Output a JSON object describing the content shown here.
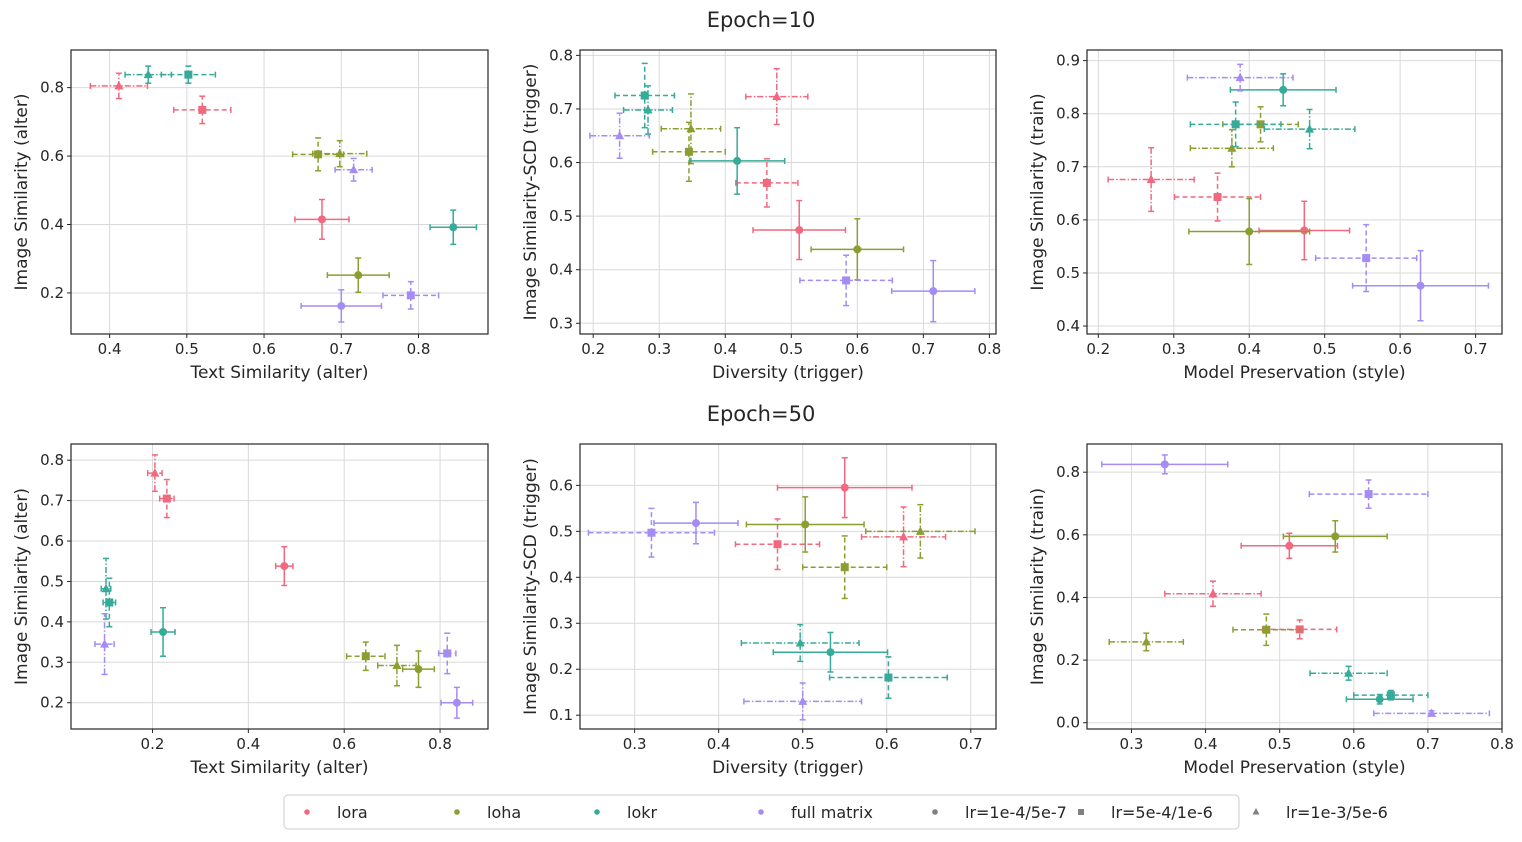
{
  "row_titles": [
    "Epoch=10",
    "Epoch=50"
  ],
  "colors": {
    "lora": "#f0697f",
    "loha": "#8c9e31",
    "lokr": "#36ab99",
    "full matrix": "#a48cf4",
    "marker_gray": "#808080"
  },
  "legend": {
    "entries": [
      {
        "label": "lora",
        "marker": "circle",
        "color": "#f0697f"
      },
      {
        "label": "loha",
        "marker": "circle",
        "color": "#8c9e31"
      },
      {
        "label": "lokr",
        "marker": "circle",
        "color": "#36ab99"
      },
      {
        "label": "full matrix",
        "marker": "circle",
        "color": "#a48cf4"
      },
      {
        "label": "lr=1e-4/5e-7",
        "marker": "circle",
        "color": "#808080"
      },
      {
        "label": "lr=5e-4/1e-6",
        "marker": "square",
        "color": "#808080"
      },
      {
        "label": "lr=1e-3/5e-6",
        "marker": "triangle",
        "color": "#808080"
      }
    ]
  },
  "chart_data": [
    {
      "type": "scatter",
      "row": 0,
      "col": 0,
      "xlabel": "Text Similarity (alter)",
      "ylabel": "Image Similarity (alter)",
      "xlim": [
        0.35,
        0.89
      ],
      "ylim": [
        0.08,
        0.91
      ],
      "xticks": [
        0.4,
        0.5,
        0.6,
        0.7,
        0.8
      ],
      "yticks": [
        0.2,
        0.4,
        0.6,
        0.8
      ],
      "grid": true,
      "points": [
        {
          "m": "lora",
          "lr": "circle",
          "x": 0.675,
          "y": 0.415,
          "xe": 0.035,
          "ye": 0.058
        },
        {
          "m": "lora",
          "lr": "square",
          "x": 0.52,
          "y": 0.735,
          "xe": 0.037,
          "ye": 0.04
        },
        {
          "m": "lora",
          "lr": "triangle",
          "x": 0.412,
          "y": 0.805,
          "xe": 0.037,
          "ye": 0.037
        },
        {
          "m": "loha",
          "lr": "circle",
          "x": 0.722,
          "y": 0.252,
          "xe": 0.04,
          "ye": 0.05
        },
        {
          "m": "loha",
          "lr": "square",
          "x": 0.67,
          "y": 0.605,
          "xe": 0.033,
          "ye": 0.048
        },
        {
          "m": "loha",
          "lr": "triangle",
          "x": 0.698,
          "y": 0.607,
          "xe": 0.035,
          "ye": 0.038
        },
        {
          "m": "lokr",
          "lr": "circle",
          "x": 0.845,
          "y": 0.392,
          "xe": 0.03,
          "ye": 0.05
        },
        {
          "m": "lokr",
          "lr": "square",
          "x": 0.502,
          "y": 0.838,
          "xe": 0.035,
          "ye": 0.025
        },
        {
          "m": "lokr",
          "lr": "triangle",
          "x": 0.45,
          "y": 0.838,
          "xe": 0.03,
          "ye": 0.025
        },
        {
          "m": "full matrix",
          "lr": "circle",
          "x": 0.7,
          "y": 0.162,
          "xe": 0.052,
          "ye": 0.047
        },
        {
          "m": "full matrix",
          "lr": "square",
          "x": 0.79,
          "y": 0.193,
          "xe": 0.036,
          "ye": 0.04
        },
        {
          "m": "full matrix",
          "lr": "triangle",
          "x": 0.716,
          "y": 0.56,
          "xe": 0.024,
          "ye": 0.033
        }
      ]
    },
    {
      "type": "scatter",
      "row": 0,
      "col": 1,
      "xlabel": "Diversity (trigger)",
      "ylabel": "Image Similarity-SCD (trigger)",
      "xlim": [
        0.18,
        0.81
      ],
      "ylim": [
        0.28,
        0.81
      ],
      "xticks": [
        0.2,
        0.3,
        0.4,
        0.5,
        0.6,
        0.7,
        0.8
      ],
      "yticks": [
        0.3,
        0.4,
        0.5,
        0.6,
        0.7,
        0.8
      ],
      "grid": true,
      "points": [
        {
          "m": "lora",
          "lr": "circle",
          "x": 0.512,
          "y": 0.474,
          "xe": 0.07,
          "ye": 0.055
        },
        {
          "m": "lora",
          "lr": "square",
          "x": 0.463,
          "y": 0.562,
          "xe": 0.047,
          "ye": 0.045
        },
        {
          "m": "lora",
          "lr": "triangle",
          "x": 0.478,
          "y": 0.723,
          "xe": 0.047,
          "ye": 0.052
        },
        {
          "m": "loha",
          "lr": "circle",
          "x": 0.6,
          "y": 0.438,
          "xe": 0.07,
          "ye": 0.057
        },
        {
          "m": "loha",
          "lr": "square",
          "x": 0.345,
          "y": 0.62,
          "xe": 0.055,
          "ye": 0.055
        },
        {
          "m": "loha",
          "lr": "triangle",
          "x": 0.348,
          "y": 0.663,
          "xe": 0.045,
          "ye": 0.065
        },
        {
          "m": "lokr",
          "lr": "circle",
          "x": 0.418,
          "y": 0.603,
          "xe": 0.072,
          "ye": 0.062
        },
        {
          "m": "lokr",
          "lr": "square",
          "x": 0.278,
          "y": 0.725,
          "xe": 0.045,
          "ye": 0.06
        },
        {
          "m": "lokr",
          "lr": "triangle",
          "x": 0.283,
          "y": 0.698,
          "xe": 0.037,
          "ye": 0.045
        },
        {
          "m": "full matrix",
          "lr": "circle",
          "x": 0.715,
          "y": 0.36,
          "xe": 0.063,
          "ye": 0.057
        },
        {
          "m": "full matrix",
          "lr": "square",
          "x": 0.583,
          "y": 0.38,
          "xe": 0.07,
          "ye": 0.047
        },
        {
          "m": "full matrix",
          "lr": "triangle",
          "x": 0.24,
          "y": 0.65,
          "xe": 0.045,
          "ye": 0.042
        }
      ]
    },
    {
      "type": "scatter",
      "row": 0,
      "col": 2,
      "xlabel": "Model Preservation (style)",
      "ylabel": "Image Similarity (train)",
      "xlim": [
        0.185,
        0.735
      ],
      "ylim": [
        0.385,
        0.92
      ],
      "xticks": [
        0.2,
        0.3,
        0.4,
        0.5,
        0.6,
        0.7
      ],
      "yticks": [
        0.4,
        0.5,
        0.6,
        0.7,
        0.8,
        0.9
      ],
      "grid": true,
      "points": [
        {
          "m": "lora",
          "lr": "circle",
          "x": 0.473,
          "y": 0.58,
          "xe": 0.06,
          "ye": 0.055
        },
        {
          "m": "lora",
          "lr": "square",
          "x": 0.358,
          "y": 0.643,
          "xe": 0.057,
          "ye": 0.045
        },
        {
          "m": "lora",
          "lr": "triangle",
          "x": 0.27,
          "y": 0.676,
          "xe": 0.057,
          "ye": 0.06
        },
        {
          "m": "loha",
          "lr": "circle",
          "x": 0.4,
          "y": 0.578,
          "xe": 0.08,
          "ye": 0.062
        },
        {
          "m": "loha",
          "lr": "square",
          "x": 0.415,
          "y": 0.78,
          "xe": 0.05,
          "ye": 0.033
        },
        {
          "m": "loha",
          "lr": "triangle",
          "x": 0.377,
          "y": 0.735,
          "xe": 0.055,
          "ye": 0.035
        },
        {
          "m": "lokr",
          "lr": "circle",
          "x": 0.445,
          "y": 0.845,
          "xe": 0.07,
          "ye": 0.03
        },
        {
          "m": "lokr",
          "lr": "square",
          "x": 0.382,
          "y": 0.78,
          "xe": 0.06,
          "ye": 0.042
        },
        {
          "m": "lokr",
          "lr": "triangle",
          "x": 0.48,
          "y": 0.771,
          "xe": 0.06,
          "ye": 0.037
        },
        {
          "m": "full matrix",
          "lr": "circle",
          "x": 0.627,
          "y": 0.476,
          "xe": 0.09,
          "ye": 0.066
        },
        {
          "m": "full matrix",
          "lr": "square",
          "x": 0.555,
          "y": 0.528,
          "xe": 0.067,
          "ye": 0.063
        },
        {
          "m": "full matrix",
          "lr": "triangle",
          "x": 0.388,
          "y": 0.868,
          "xe": 0.07,
          "ye": 0.025
        }
      ]
    },
    {
      "type": "scatter",
      "row": 1,
      "col": 0,
      "xlabel": "Text Similarity (alter)",
      "ylabel": "Image Similarity (alter)",
      "xlim": [
        0.03,
        0.9
      ],
      "ylim": [
        0.135,
        0.84
      ],
      "xticks": [
        0.2,
        0.4,
        0.6,
        0.8
      ],
      "yticks": [
        0.2,
        0.3,
        0.4,
        0.5,
        0.6,
        0.7,
        0.8
      ],
      "grid": true,
      "points": [
        {
          "m": "lora",
          "lr": "circle",
          "x": 0.475,
          "y": 0.538,
          "xe": 0.018,
          "ye": 0.048
        },
        {
          "m": "lora",
          "lr": "square",
          "x": 0.23,
          "y": 0.705,
          "xe": 0.015,
          "ye": 0.047
        },
        {
          "m": "lora",
          "lr": "triangle",
          "x": 0.205,
          "y": 0.768,
          "xe": 0.015,
          "ye": 0.045
        },
        {
          "m": "loha",
          "lr": "circle",
          "x": 0.755,
          "y": 0.283,
          "xe": 0.033,
          "ye": 0.045
        },
        {
          "m": "loha",
          "lr": "square",
          "x": 0.645,
          "y": 0.315,
          "xe": 0.04,
          "ye": 0.035
        },
        {
          "m": "loha",
          "lr": "triangle",
          "x": 0.71,
          "y": 0.292,
          "xe": 0.04,
          "ye": 0.05
        },
        {
          "m": "lokr",
          "lr": "circle",
          "x": 0.222,
          "y": 0.375,
          "xe": 0.025,
          "ye": 0.06
        },
        {
          "m": "lokr",
          "lr": "square",
          "x": 0.11,
          "y": 0.448,
          "xe": 0.013,
          "ye": 0.06
        },
        {
          "m": "lokr",
          "lr": "triangle",
          "x": 0.103,
          "y": 0.482,
          "xe": 0.01,
          "ye": 0.075
        },
        {
          "m": "full matrix",
          "lr": "circle",
          "x": 0.835,
          "y": 0.2,
          "xe": 0.033,
          "ye": 0.038
        },
        {
          "m": "full matrix",
          "lr": "square",
          "x": 0.815,
          "y": 0.322,
          "xe": 0.018,
          "ye": 0.05
        },
        {
          "m": "full matrix",
          "lr": "triangle",
          "x": 0.1,
          "y": 0.345,
          "xe": 0.02,
          "ye": 0.075
        }
      ]
    },
    {
      "type": "scatter",
      "row": 1,
      "col": 1,
      "xlabel": "Diversity (trigger)",
      "ylabel": "Image Similarity-SCD (trigger)",
      "xlim": [
        0.235,
        0.73
      ],
      "ylim": [
        0.07,
        0.69
      ],
      "xticks": [
        0.3,
        0.4,
        0.5,
        0.6,
        0.7
      ],
      "yticks": [
        0.1,
        0.2,
        0.3,
        0.4,
        0.5,
        0.6
      ],
      "grid": true,
      "points": [
        {
          "m": "lora",
          "lr": "circle",
          "x": 0.55,
          "y": 0.595,
          "xe": 0.08,
          "ye": 0.065
        },
        {
          "m": "lora",
          "lr": "square",
          "x": 0.47,
          "y": 0.472,
          "xe": 0.05,
          "ye": 0.055
        },
        {
          "m": "lora",
          "lr": "triangle",
          "x": 0.62,
          "y": 0.488,
          "xe": 0.05,
          "ye": 0.065
        },
        {
          "m": "loha",
          "lr": "circle",
          "x": 0.503,
          "y": 0.515,
          "xe": 0.07,
          "ye": 0.06
        },
        {
          "m": "loha",
          "lr": "square",
          "x": 0.55,
          "y": 0.422,
          "xe": 0.05,
          "ye": 0.068
        },
        {
          "m": "loha",
          "lr": "triangle",
          "x": 0.64,
          "y": 0.5,
          "xe": 0.065,
          "ye": 0.058
        },
        {
          "m": "lokr",
          "lr": "circle",
          "x": 0.533,
          "y": 0.237,
          "xe": 0.068,
          "ye": 0.043
        },
        {
          "m": "lokr",
          "lr": "square",
          "x": 0.602,
          "y": 0.182,
          "xe": 0.07,
          "ye": 0.045
        },
        {
          "m": "lokr",
          "lr": "triangle",
          "x": 0.497,
          "y": 0.257,
          "xe": 0.07,
          "ye": 0.04
        },
        {
          "m": "full matrix",
          "lr": "circle",
          "x": 0.373,
          "y": 0.518,
          "xe": 0.05,
          "ye": 0.045
        },
        {
          "m": "full matrix",
          "lr": "square",
          "x": 0.32,
          "y": 0.497,
          "xe": 0.075,
          "ye": 0.053
        },
        {
          "m": "full matrix",
          "lr": "triangle",
          "x": 0.5,
          "y": 0.13,
          "xe": 0.07,
          "ye": 0.04
        }
      ]
    },
    {
      "type": "scatter",
      "row": 1,
      "col": 2,
      "xlabel": "Model Preservation (style)",
      "ylabel": "Image Similarity (train)",
      "xlim": [
        0.24,
        0.8
      ],
      "ylim": [
        -0.02,
        0.89
      ],
      "xticks": [
        0.3,
        0.4,
        0.5,
        0.6,
        0.7,
        0.8
      ],
      "yticks": [
        0.0,
        0.2,
        0.4,
        0.6,
        0.8
      ],
      "grid": true,
      "points": [
        {
          "m": "lora",
          "lr": "circle",
          "x": 0.513,
          "y": 0.565,
          "xe": 0.065,
          "ye": 0.04
        },
        {
          "m": "lora",
          "lr": "square",
          "x": 0.527,
          "y": 0.298,
          "xe": 0.05,
          "ye": 0.03
        },
        {
          "m": "lora",
          "lr": "triangle",
          "x": 0.41,
          "y": 0.412,
          "xe": 0.065,
          "ye": 0.04
        },
        {
          "m": "loha",
          "lr": "circle",
          "x": 0.575,
          "y": 0.595,
          "xe": 0.07,
          "ye": 0.05
        },
        {
          "m": "loha",
          "lr": "square",
          "x": 0.482,
          "y": 0.297,
          "xe": 0.045,
          "ye": 0.05
        },
        {
          "m": "loha",
          "lr": "triangle",
          "x": 0.32,
          "y": 0.258,
          "xe": 0.05,
          "ye": 0.028
        },
        {
          "m": "lokr",
          "lr": "circle",
          "x": 0.635,
          "y": 0.075,
          "xe": 0.045,
          "ye": 0.015
        },
        {
          "m": "lokr",
          "lr": "square",
          "x": 0.65,
          "y": 0.088,
          "xe": 0.05,
          "ye": 0.015
        },
        {
          "m": "lokr",
          "lr": "triangle",
          "x": 0.593,
          "y": 0.158,
          "xe": 0.052,
          "ye": 0.022
        },
        {
          "m": "full matrix",
          "lr": "circle",
          "x": 0.345,
          "y": 0.825,
          "xe": 0.085,
          "ye": 0.03
        },
        {
          "m": "full matrix",
          "lr": "square",
          "x": 0.62,
          "y": 0.73,
          "xe": 0.08,
          "ye": 0.045
        },
        {
          "m": "full matrix",
          "lr": "triangle",
          "x": 0.705,
          "y": 0.03,
          "xe": 0.078,
          "ye": 0.008
        }
      ]
    }
  ]
}
